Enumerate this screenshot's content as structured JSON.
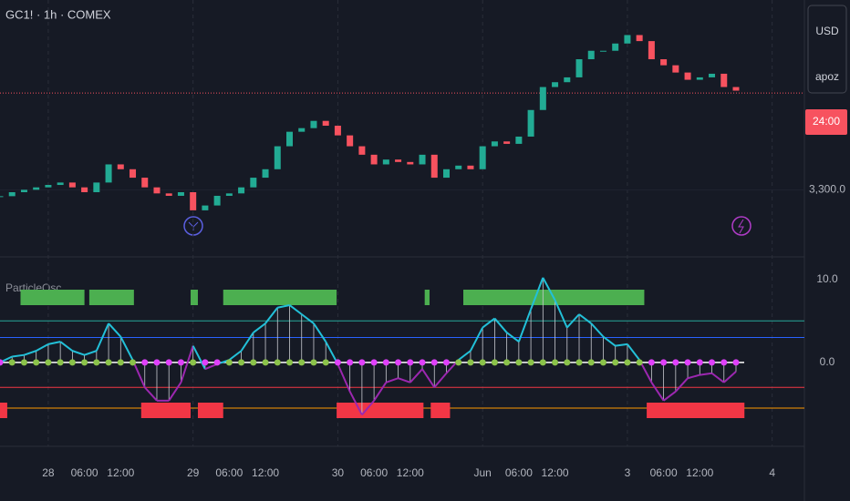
{
  "chart_data": [
    {
      "type": "candlestick",
      "title": "GC1! · 1h · COMEX",
      "closes": [
        3294.7,
        3298,
        3300,
        3302,
        3304,
        3306,
        3302,
        3298,
        3306,
        3321,
        3317,
        3310,
        3302,
        3297,
        3295,
        3298,
        3283,
        3287,
        3295,
        3297,
        3302,
        3310,
        3317,
        3336,
        3348,
        3351,
        3357,
        3353,
        3345,
        3336,
        3329,
        3321,
        3325,
        3323,
        3321,
        3329,
        3310,
        3317,
        3320,
        3317,
        3336,
        3340,
        3338,
        3344,
        3366,
        3385,
        3389,
        3393,
        3408,
        3415,
        3415,
        3421,
        3428,
        3423,
        3408,
        3403,
        3397,
        3391,
        3393,
        3396,
        3385,
        3382
      ],
      "ylim": [
        3246,
        3457
      ],
      "yticks": [
        {
          "value": 3300,
          "label": "3,300.0"
        }
      ],
      "last_price": 3380,
      "currency": "USD",
      "label": "apoz",
      "countdown": "24:00",
      "colors": {
        "up": "#22ab94",
        "down": "#f7525f"
      },
      "xlim": [
        0,
        66.67
      ],
      "xticks": [
        {
          "value": 4,
          "label": "28"
        },
        {
          "value": 7,
          "label": "06:00"
        },
        {
          "value": 10,
          "label": "12:00"
        },
        {
          "value": 16,
          "label": "29"
        },
        {
          "value": 19,
          "label": "06:00"
        },
        {
          "value": 22,
          "label": "12:00"
        },
        {
          "value": 28,
          "label": "30"
        },
        {
          "value": 31,
          "label": "06:00"
        },
        {
          "value": 34,
          "label": "12:00"
        },
        {
          "value": 40,
          "label": "Jun"
        },
        {
          "value": 43,
          "label": "06:00"
        },
        {
          "value": 46,
          "label": "12:00"
        },
        {
          "value": 52,
          "label": "3"
        },
        {
          "value": 55,
          "label": "06:00"
        },
        {
          "value": 58,
          "label": "12:00"
        },
        {
          "value": 64,
          "label": "4"
        }
      ]
    },
    {
      "type": "oscillator",
      "title": "ParticleOsc",
      "values": [
        0,
        0.7,
        0.9,
        1.4,
        2.2,
        2.5,
        1.4,
        0.9,
        1.4,
        4.7,
        3.1,
        0.3,
        -3,
        -4.6,
        -4.6,
        -2.4,
        2.0,
        -0.8,
        -0.2,
        0.3,
        1.4,
        3.6,
        4.7,
        6.6,
        6.9,
        5.8,
        4.7,
        2.5,
        -0.2,
        -3.5,
        -6.3,
        -4.6,
        -2.4,
        -1.9,
        -2.4,
        -0.8,
        -3.0,
        -1.3,
        0.3,
        1.4,
        4.2,
        5.3,
        3.6,
        2.5,
        6.4,
        10.2,
        7.5,
        4.2,
        5.8,
        4.7,
        3.1,
        2.0,
        2.2,
        0.3,
        -2.4,
        -4.6,
        -3.5,
        -1.9,
        -1.5,
        -1.3,
        -2.4,
        -1.1
      ],
      "ylim": [
        -10.1,
        12.6
      ],
      "yticks": [
        {
          "value": 10,
          "label": "10.0"
        },
        {
          "value": 0,
          "label": "0.0"
        }
      ],
      "levels": [
        {
          "value": 5,
          "color": "#26a69a"
        },
        {
          "value": 3,
          "color": "#2962ff"
        },
        {
          "value": -3,
          "color": "#f23645"
        },
        {
          "value": -5.5,
          "color": "#ff9800"
        }
      ],
      "bull_zones": [
        [
          1.7,
          7.0
        ],
        [
          7.4,
          11.1
        ],
        [
          15.8,
          16.4
        ],
        [
          18.5,
          27.9
        ],
        [
          35.2,
          35.6
        ],
        [
          38.4,
          53.4
        ]
      ],
      "bear_zones": [
        [
          0,
          0.6
        ],
        [
          11.7,
          15.8
        ],
        [
          16.4,
          18.5
        ],
        [
          27.9,
          35.1
        ],
        [
          35.7,
          37.3
        ],
        [
          53.6,
          61.7
        ]
      ],
      "colors": {
        "up_line": "#22c0d8",
        "down_line": "#9c27b0",
        "bull": "#4caf50",
        "bear": "#f23645",
        "up_dot": "#8bc34a",
        "down_dot": "#e040fb"
      }
    }
  ]
}
